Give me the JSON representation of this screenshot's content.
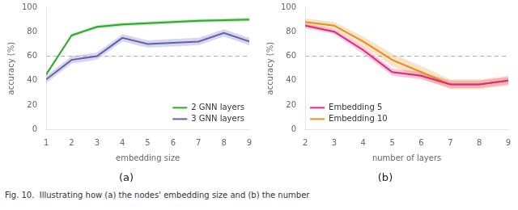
{
  "chart_data": [
    {
      "type": "line",
      "subtitle": "(a)",
      "x_label": "embedding size",
      "y_label": "accuracy (%)",
      "x": [
        1,
        2,
        3,
        4,
        5,
        6,
        7,
        8,
        9
      ],
      "series": [
        {
          "name": "2 GNN layers",
          "color": "#2aaa2a",
          "values": [
            45,
            77,
            84,
            86,
            87,
            88,
            89,
            89.5,
            90
          ],
          "std": [
            1.5,
            1.5,
            1.5,
            1.5,
            1.5,
            1.5,
            1.5,
            1.5,
            1.5
          ]
        },
        {
          "name": "3 GNN layers",
          "color": "#6060b0",
          "values": [
            41,
            57,
            60,
            75,
            70,
            71,
            72,
            79,
            72
          ],
          "std": [
            3,
            3,
            3,
            3,
            3,
            3,
            3,
            3,
            3
          ]
        }
      ],
      "hline": 60,
      "xlim": [
        1,
        9
      ],
      "xticks": [
        1,
        2,
        3,
        4,
        5,
        6,
        7,
        8,
        9
      ],
      "ylim": [
        0,
        100
      ],
      "yticks": [
        0,
        20,
        40,
        60,
        80,
        100
      ],
      "grid": false,
      "legend": "lower right"
    },
    {
      "type": "line",
      "subtitle": "(b)",
      "x_label": "number of layers",
      "y_label": "accuracy (%)",
      "x": [
        2,
        3,
        4,
        5,
        6,
        7,
        8,
        9
      ],
      "series": [
        {
          "name": "Embedding 5",
          "color": "#e0267a",
          "values": [
            85,
            80,
            65,
            47,
            44,
            37,
            37,
            40
          ],
          "std": [
            2,
            2,
            3,
            3,
            3,
            3,
            3,
            3
          ]
        },
        {
          "name": "Embedding 10",
          "color": "#e09020",
          "values": [
            88,
            85,
            72,
            57,
            47,
            37,
            37,
            40
          ],
          "std": [
            3,
            3,
            4,
            5,
            5,
            4,
            4,
            4
          ]
        }
      ],
      "hline": 60,
      "xlim": [
        2,
        9
      ],
      "xticks": [
        2,
        3,
        4,
        5,
        6,
        7,
        8,
        9
      ],
      "ylim": [
        0,
        100
      ],
      "yticks": [
        0,
        20,
        40,
        60,
        80,
        100
      ],
      "grid": false,
      "legend": "lower left"
    }
  ],
  "caption": "Fig. 10.  Illustrating how (a) the nodes' embedding size and (b) the number"
}
